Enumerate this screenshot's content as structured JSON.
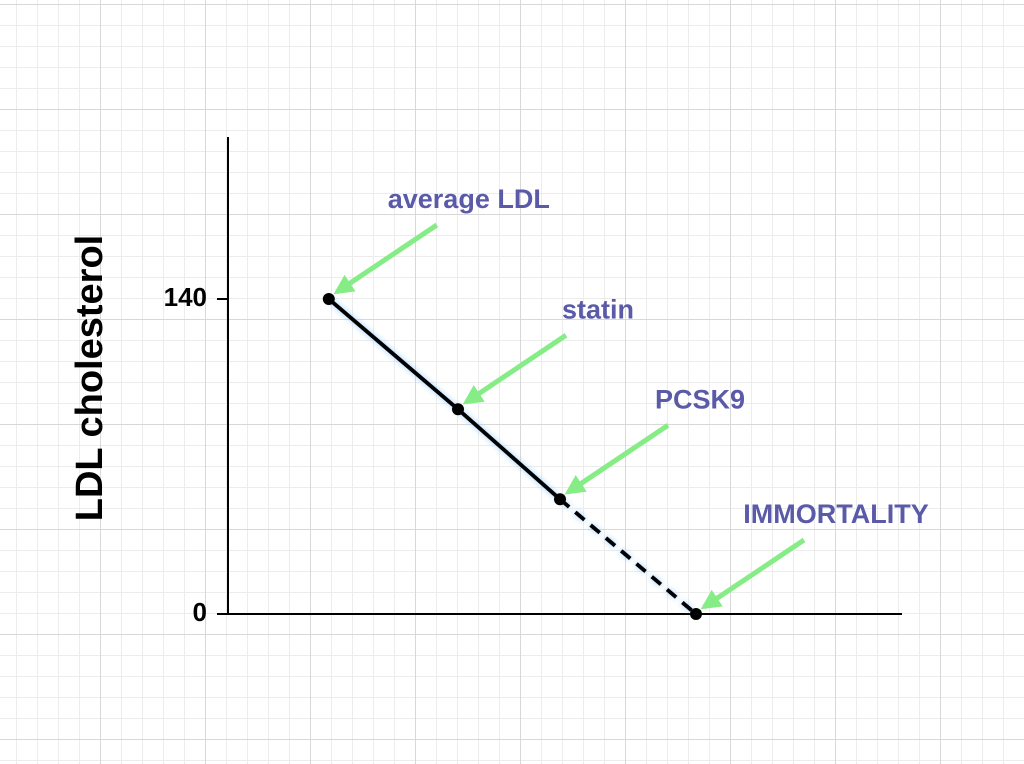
{
  "chart_data": {
    "type": "line",
    "y_label": "LDL cholesterol",
    "x": [
      0.16,
      0.35,
      0.5,
      0.7
    ],
    "xlim": [
      0,
      1
    ],
    "values": [
      140,
      91,
      51,
      0
    ],
    "point_labels": [
      "average LDL",
      "statin",
      "PCSK9",
      "IMMORTALITY"
    ],
    "segment_styles": [
      "solid",
      "solid",
      "dashed"
    ],
    "color": "#000000",
    "label_color": "#5a5aa8",
    "arrow_color": "#86ec86",
    "ylim": [
      0,
      212
    ],
    "yticks": [
      0,
      140
    ]
  }
}
